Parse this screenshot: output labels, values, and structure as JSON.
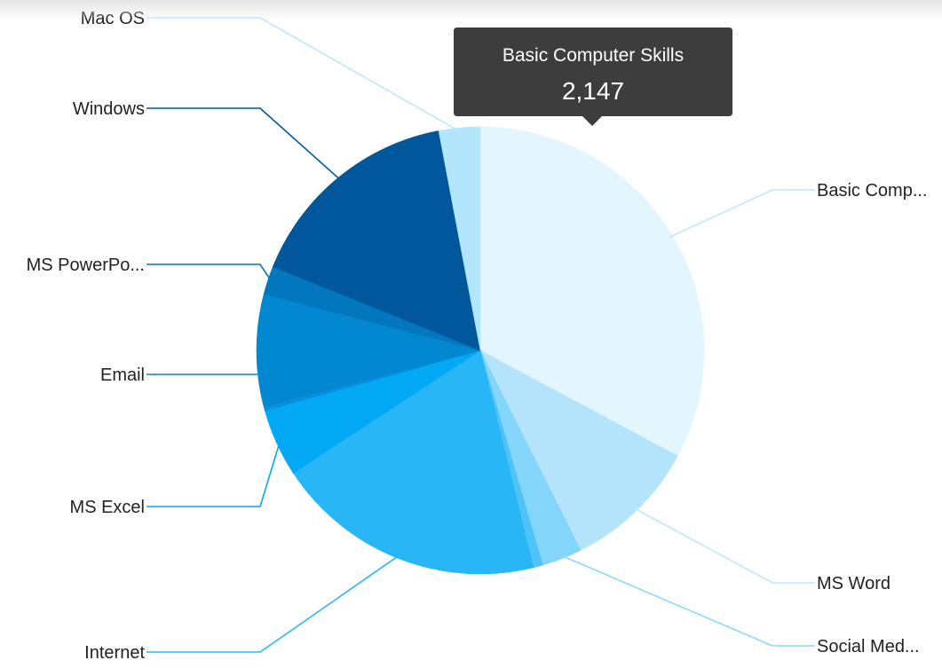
{
  "chart_data": {
    "type": "pie",
    "start": "top",
    "direction": "clockwise",
    "slices": [
      {
        "label": "Basic Computer Skills",
        "display_label": "Basic Comp...",
        "value": 2147,
        "color": "#e3f5fd",
        "label_side": "right"
      },
      {
        "label": "MS Word",
        "display_label": "MS Word",
        "value": 640,
        "color": "#b3e4fb",
        "label_side": "right"
      },
      {
        "label": "Social Media",
        "display_label": "Social Med...",
        "value": 190,
        "color": "#83d5fa",
        "label_side": "right"
      },
      {
        "label": "",
        "display_label": "",
        "value": 45,
        "color": "#4fc2f7",
        "label_side": "right"
      },
      {
        "label": "Internet",
        "display_label": "Internet",
        "value": 1280,
        "color": "#29b6f6",
        "label_side": "left"
      },
      {
        "label": "MS Excel",
        "display_label": "MS Excel",
        "value": 320,
        "color": "#03a9f4",
        "label_side": "left"
      },
      {
        "label": "",
        "display_label": "",
        "value": 20,
        "color": "#0a8ddc",
        "label_side": "left"
      },
      {
        "label": "Email",
        "display_label": "Email",
        "value": 530,
        "color": "#0288d1",
        "label_side": "left"
      },
      {
        "label": "MS PowerPoint",
        "display_label": "MS PowerPo...",
        "value": 135,
        "color": "#0277bd",
        "label_side": "left"
      },
      {
        "label": "Windows",
        "display_label": "Windows",
        "value": 1040,
        "color": "#01579b",
        "label_side": "left"
      },
      {
        "label": "Mac OS",
        "display_label": "Mac OS",
        "value": 195,
        "color": "#b3e5fc",
        "label_side": "left"
      }
    ]
  },
  "tooltip": {
    "title": "Basic Computer Skills",
    "value": "2,147"
  },
  "colors": {
    "tooltip_bg": "#3d3d3d",
    "label_text": "#222222"
  }
}
